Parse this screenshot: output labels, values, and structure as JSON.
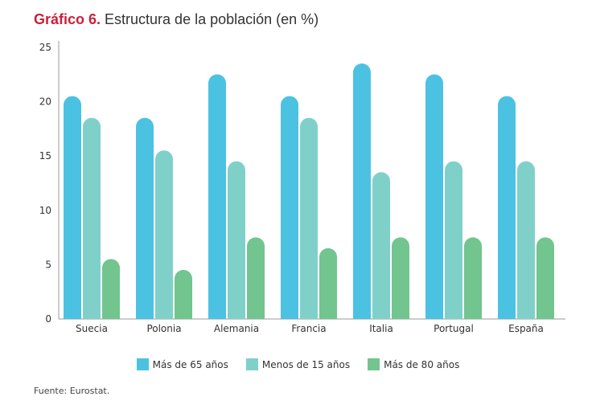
{
  "title_number": "Gráfico 6.",
  "title_text": " Estructura de la población (en %)",
  "source": "Fuente: Eurostat.",
  "chart_data": {
    "type": "bar",
    "categories": [
      "Suecia",
      "Polonia",
      "Alemania",
      "Francia",
      "Italia",
      "Portugal",
      "España"
    ],
    "series": [
      {
        "name": "Más de 65 años",
        "color": "#4cc2e2",
        "values": [
          20,
          18,
          22,
          20,
          23,
          22,
          20
        ]
      },
      {
        "name": "Menos de 15 años",
        "color": "#80d0ca",
        "values": [
          18,
          15,
          14,
          18,
          13,
          14,
          14
        ]
      },
      {
        "name": "Más de 80 años",
        "color": "#72c58f",
        "values": [
          5,
          4,
          7,
          6,
          7,
          7,
          7
        ]
      }
    ],
    "ylim": [
      0,
      25
    ],
    "yticks": [
      "0",
      "5",
      "10",
      "15",
      "20",
      "25"
    ],
    "grid": false,
    "legend": "bottom"
  }
}
